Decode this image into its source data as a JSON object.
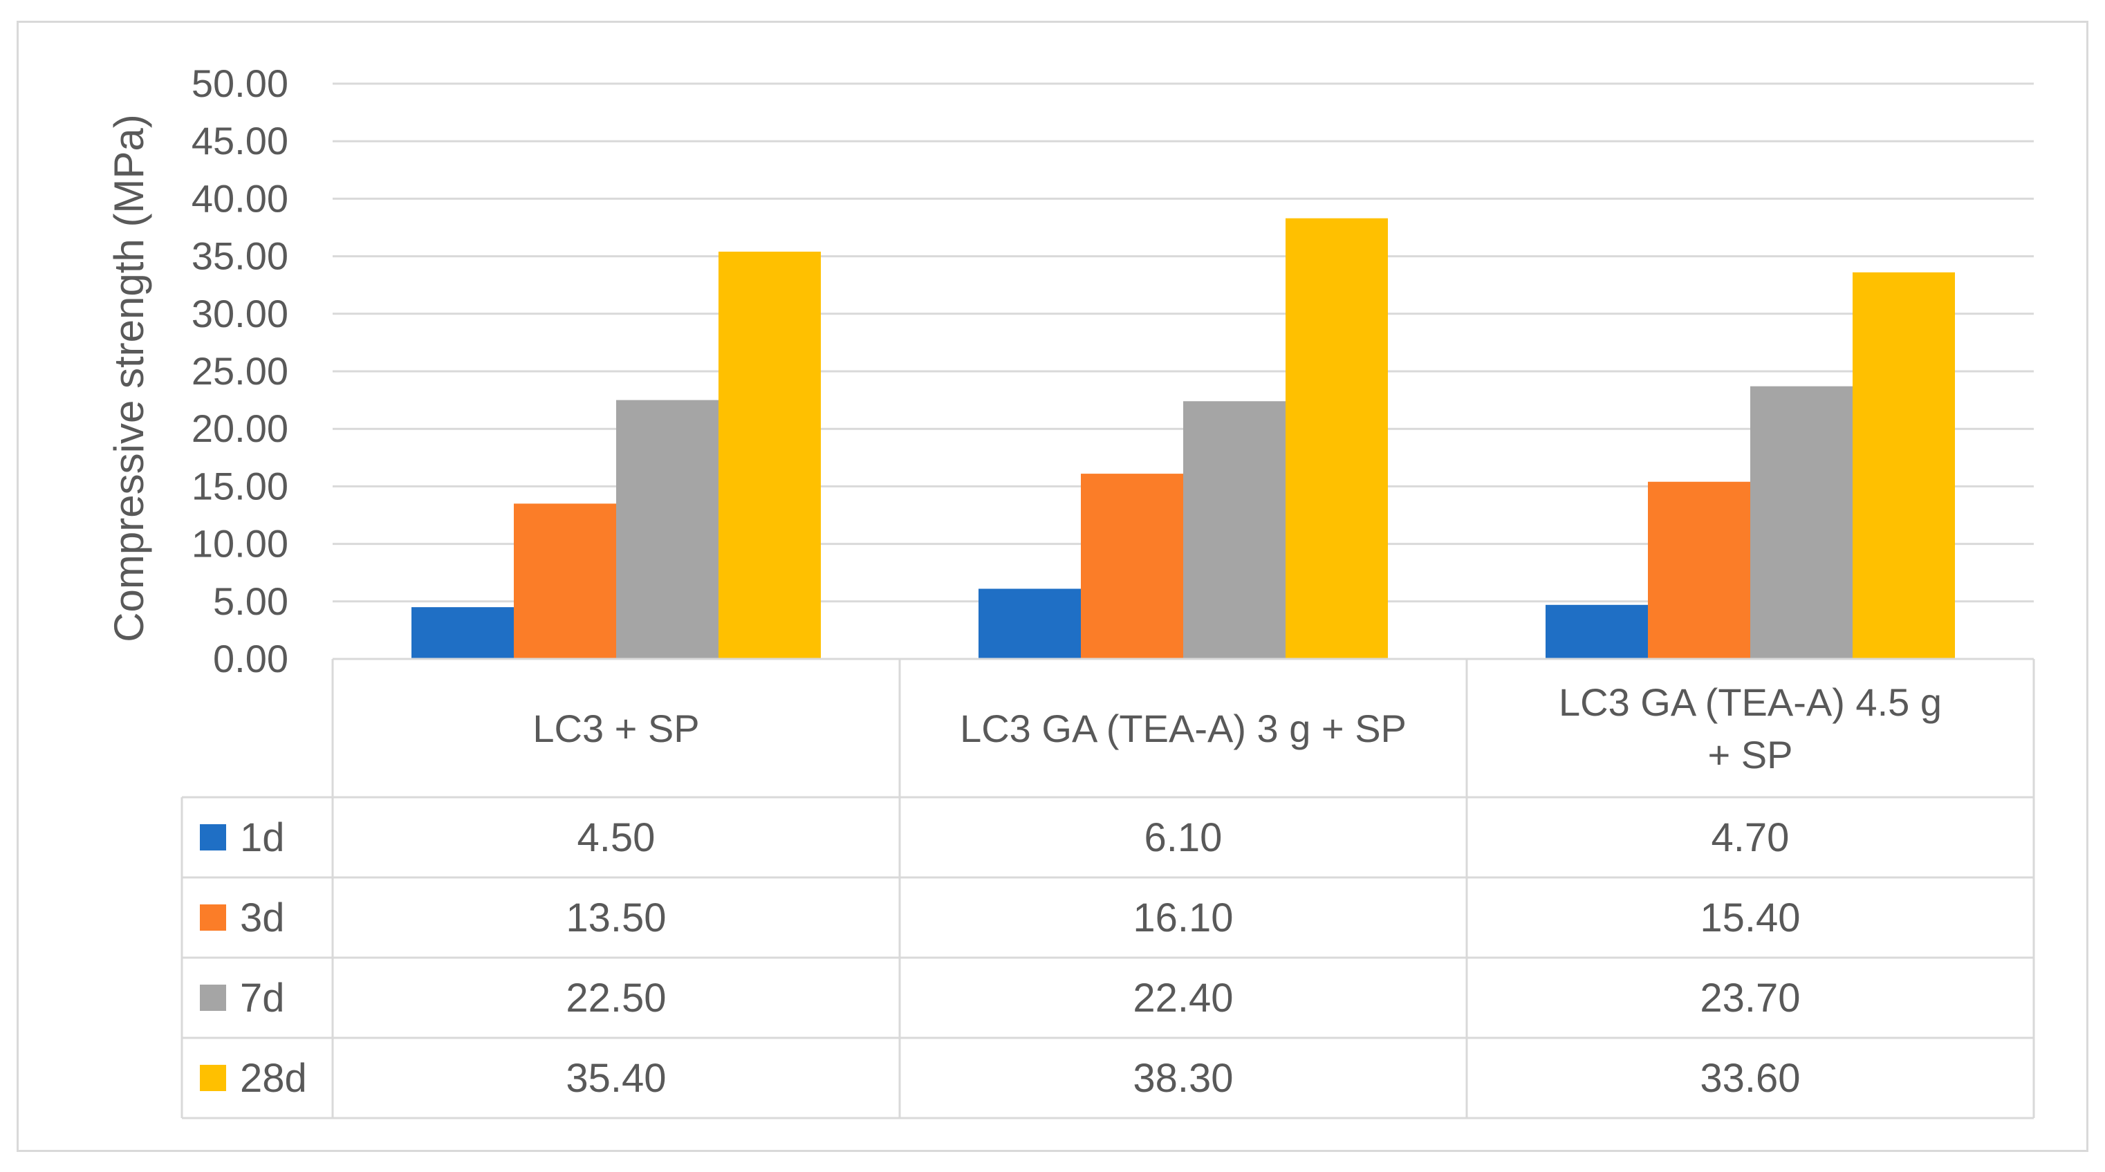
{
  "chart_data": {
    "type": "bar",
    "title": "",
    "xlabel": "",
    "ylabel": "Compressive strength  (MPa)",
    "ylim": [
      0,
      50
    ],
    "ytick_step": 5,
    "ytick_labels": [
      "0.00",
      "5.00",
      "10.00",
      "15.00",
      "20.00",
      "25.00",
      "30.00",
      "35.00",
      "40.00",
      "45.00",
      "50.00"
    ],
    "grid": true,
    "legend": "data-table",
    "categories": [
      "LC3 + SP",
      "LC3 GA (TEA-A) 3 g + SP",
      "LC3 GA (TEA-A) 4.5 g + SP"
    ],
    "category_label_lines": [
      [
        "LC3 + SP"
      ],
      [
        "LC3 GA (TEA-A) 3 g + SP"
      ],
      [
        "LC3 GA (TEA-A) 4.5 g",
        "+ SP"
      ]
    ],
    "series": [
      {
        "name": "1d",
        "color": "#1F6FC5",
        "values": [
          4.5,
          6.1,
          4.7
        ],
        "labels": [
          "4.50",
          "6.10",
          "4.70"
        ]
      },
      {
        "name": "3d",
        "color": "#FB7D28",
        "values": [
          13.5,
          16.1,
          15.4
        ],
        "labels": [
          "13.50",
          "16.10",
          "15.40"
        ]
      },
      {
        "name": "7d",
        "color": "#A5A5A5",
        "values": [
          22.5,
          22.4,
          23.7
        ],
        "labels": [
          "22.50",
          "22.40",
          "23.70"
        ]
      },
      {
        "name": "28d",
        "color": "#FFC000",
        "values": [
          35.4,
          38.3,
          33.6
        ],
        "labels": [
          "35.40",
          "38.30",
          "33.60"
        ]
      }
    ]
  }
}
